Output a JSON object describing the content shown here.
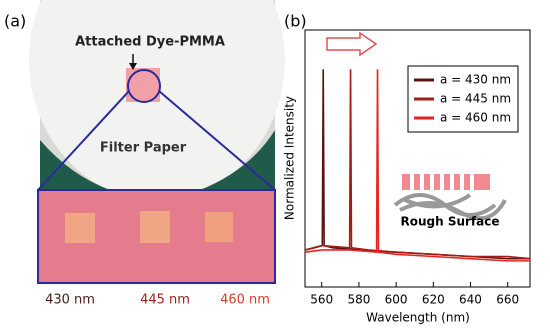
{
  "panel_a": {
    "label": "(a)",
    "annotation": "Attached Dye-PMMA",
    "paper_label": "Filter Paper",
    "sample_labels": [
      "430 nm",
      "445 nm",
      "460 nm"
    ]
  },
  "panel_b_label": "(b)",
  "chart_data": {
    "type": "line",
    "xlabel": "Wavelength (nm)",
    "ylabel": "Normalized Intensity",
    "annotation": "Rough Surface",
    "xlim": [
      551,
      672
    ],
    "xticks": [
      560,
      580,
      600,
      620,
      640,
      660
    ],
    "ylim": [
      0,
      1.18
    ],
    "legend": "upper right",
    "series": [
      {
        "name": "a = 430 nm",
        "color": "#5a1410",
        "x": [
          551,
          556,
          560.3,
          560.8,
          561.3,
          566,
          580,
          600,
          620,
          640,
          660,
          672
        ],
        "values": [
          0.17,
          0.18,
          0.19,
          1.0,
          0.19,
          0.18,
          0.17,
          0.16,
          0.15,
          0.14,
          0.13,
          0.13
        ]
      },
      {
        "name": "a = 445 nm",
        "color": "#a01c18",
        "x": [
          551,
          560,
          575,
          575.5,
          576,
          585,
          600,
          620,
          640,
          660,
          672
        ],
        "values": [
          0.17,
          0.19,
          0.18,
          1.0,
          0.18,
          0.17,
          0.16,
          0.15,
          0.14,
          0.14,
          0.13
        ]
      },
      {
        "name": "a = 460 nm",
        "color": "#e6261e",
        "x": [
          551,
          560,
          575,
          589.5,
          590,
          590.5,
          600,
          620,
          640,
          660,
          672
        ],
        "values": [
          0.16,
          0.17,
          0.17,
          0.16,
          1.0,
          0.16,
          0.15,
          0.14,
          0.13,
          0.12,
          0.12
        ]
      }
    ]
  }
}
